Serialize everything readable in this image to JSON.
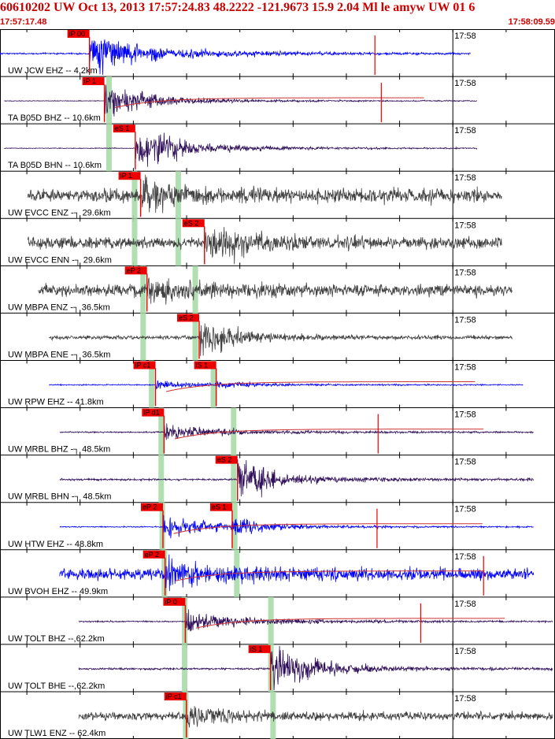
{
  "header": {
    "title": "60610202 UW Oct 13, 2013 17:57:24.83   48.2222 -121.9673 15.9 2.04 Ml le amyw UW 01   6",
    "start_time": "17:57:17.48",
    "end_time": "17:58:09.59"
  },
  "colors": {
    "header_text": "#cc0000",
    "trace_blue": "#0000ff",
    "trace_gray": "#404040",
    "trace_purple": "#30105a",
    "pick_box": "#ee0000",
    "pick_line": "#ee0000",
    "theory_band": "#a8dca8",
    "coda_line": "#cc3333"
  },
  "chart_data": {
    "type": "line",
    "title": "60610202 UW Oct 13, 2013 17:57:24.83   48.2222 -121.9673 15.9 2.04 Ml le amyw UW 01   6",
    "time_range": [
      "17:57:17.48",
      "17:58:09.59"
    ],
    "minute_tick_label": "17:58",
    "traces": [
      {
        "station": "UW JCW EHZ -- 4.2km",
        "color": "blue",
        "p_pick": "iP 00",
        "p_t": 8.4,
        "s_pick": "",
        "s_t": 0,
        "amp": 1.0,
        "onset_amp": 1.0,
        "noise": 0.04,
        "trace_start": 0,
        "trace_end": 44.2,
        "end_spike_t": 35.2,
        "coda": false,
        "band1_t": 0,
        "band2_t": 0
      },
      {
        "station": "TA B05D BHZ -- 10.6km",
        "color": "purple",
        "p_pick": "iP 1",
        "p_t": 9.8,
        "s_pick": "",
        "s_t": 0,
        "amp": 0.45,
        "onset_amp": 0.9,
        "noise": 0.02,
        "trace_start": 0.4,
        "trace_end": 44.8,
        "end_spike_t": 35.8,
        "coda": true,
        "band1_t": 10.2,
        "band2_t": 0
      },
      {
        "station": "TA B05D BHN -- 10.6km",
        "color": "purple",
        "p_pick": "",
        "p_t": 0,
        "s_pick": "eS 1",
        "s_t": 12.7,
        "amp": 0.55,
        "onset_amp": 1.0,
        "noise": 0.02,
        "trace_start": 0.4,
        "trace_end": 44.8,
        "end_spike_t": 0,
        "coda": false,
        "band1_t": 10.2,
        "band2_t": 0
      },
      {
        "station": "UW EVCC ENZ -┐ 29.6km",
        "color": "gray",
        "p_pick": "iP 1",
        "p_t": 13.2,
        "s_pick": "",
        "s_t": 0,
        "amp": 0.3,
        "onset_amp": 0.6,
        "noise": 0.35,
        "trace_start": 2.6,
        "trace_end": 47.1,
        "end_spike_t": 0,
        "coda": false,
        "band1_t": 12.6,
        "band2_t": 16.7
      },
      {
        "station": "UW EVCC ENN -┐ 29.6km",
        "color": "gray",
        "p_pick": "",
        "p_t": 0,
        "s_pick": "eS 2",
        "s_t": 19.2,
        "amp": 0.3,
        "onset_amp": 0.6,
        "noise": 0.3,
        "trace_start": 2.6,
        "trace_end": 47.1,
        "end_spike_t": 0,
        "coda": false,
        "band1_t": 12.6,
        "band2_t": 16.7
      },
      {
        "station": "UW MBPA ENZ -┐ 36.5km",
        "color": "gray",
        "p_pick": "eP 2",
        "p_t": 13.8,
        "s_pick": "",
        "s_t": 0,
        "amp": 0.3,
        "onset_amp": 0.5,
        "noise": 0.3,
        "trace_start": 3.6,
        "trace_end": 48.1,
        "end_spike_t": 0,
        "coda": false,
        "band1_t": 13.4,
        "band2_t": 18.3
      },
      {
        "station": "UW MBPA ENE -┐ 36.5km",
        "color": "gray",
        "p_pick": "",
        "p_t": 0,
        "s_pick": "eS 2",
        "s_t": 18.7,
        "amp": 0.25,
        "onset_amp": 0.6,
        "noise": 0.1,
        "trace_start": 4.6,
        "trace_end": 48.1,
        "end_spike_t": 0,
        "coda": false,
        "band1_t": 13.4,
        "band2_t": 18.3
      },
      {
        "station": "UW RPW EHZ -- 41.8km",
        "color": "blue",
        "p_pick": "iP c1",
        "p_t": 14.6,
        "s_pick": "iS 1",
        "s_t": 20.3,
        "amp": 0.18,
        "onset_amp": 0.2,
        "noise": 0.03,
        "trace_start": 4.6,
        "trace_end": 49.1,
        "end_spike_t": 0,
        "coda": true,
        "band1_t": 14.2,
        "band2_t": 20.0
      },
      {
        "station": "UW MRBL BHZ -┐ 48.5km",
        "color": "purple",
        "p_pick": "iP d1",
        "p_t": 15.4,
        "s_pick": "",
        "s_t": 0,
        "amp": 0.35,
        "onset_amp": 0.4,
        "noise": 0.04,
        "trace_start": 5.6,
        "trace_end": 50.1,
        "end_spike_t": 35.5,
        "coda": true,
        "band1_t": 15.1,
        "band2_t": 21.9
      },
      {
        "station": "UW MRBL BHN -┐ 48.5km",
        "color": "purple",
        "p_pick": "",
        "p_t": 0,
        "s_pick": "eS 2",
        "s_t": 22.3,
        "amp": 0.45,
        "onset_amp": 0.7,
        "noise": 0.05,
        "trace_start": 5.6,
        "trace_end": 50.1,
        "end_spike_t": 0,
        "coda": false,
        "band1_t": 15.1,
        "band2_t": 21.9
      },
      {
        "station": "UW HTW EHZ -- 48.8km",
        "color": "blue",
        "p_pick": "eP 2",
        "p_t": 15.3,
        "s_pick": "eS 1",
        "s_t": 21.8,
        "amp": 0.45,
        "onset_amp": 0.5,
        "noise": 0.03,
        "trace_start": 5.6,
        "trace_end": 50.1,
        "end_spike_t": 35.4,
        "coda": true,
        "band1_t": 15.2,
        "band2_t": 22.0
      },
      {
        "station": "UW BVOH EHZ -- 49.9km",
        "color": "blue",
        "p_pick": "eP 2",
        "p_t": 15.5,
        "s_pick": "",
        "s_t": 0,
        "amp": 0.45,
        "onset_amp": 0.6,
        "noise": 0.3,
        "trace_start": 5.6,
        "trace_end": 50.1,
        "end_spike_t": 45.4,
        "coda": true,
        "band1_t": 15.4,
        "band2_t": 22.2
      },
      {
        "station": "UW TOLT BHZ --,62.2km",
        "color": "purple",
        "p_pick": "iP 0",
        "p_t": 17.4,
        "s_pick": "",
        "s_t": 0,
        "amp": 0.45,
        "onset_amp": 0.5,
        "noise": 0.04,
        "trace_start": 7.4,
        "trace_end": 51.9,
        "end_spike_t": 39.5,
        "coda": true,
        "band1_t": 17.3,
        "band2_t": 25.4
      },
      {
        "station": "UW TOLT BHE --,62.2km",
        "color": "purple",
        "p_pick": "",
        "p_t": 0,
        "s_pick": "iS 1",
        "s_t": 25.4,
        "amp": 0.5,
        "onset_amp": 0.8,
        "noise": 0.05,
        "trace_start": 7.4,
        "trace_end": 51.9,
        "end_spike_t": 0,
        "coda": false,
        "band1_t": 17.3,
        "band2_t": 25.4
      },
      {
        "station": "UW TLW1 ENZ -- 62.4km",
        "color": "gray",
        "p_pick": "iP c1",
        "p_t": 17.5,
        "s_pick": "",
        "s_t": 0,
        "amp": 0.35,
        "onset_amp": 0.4,
        "noise": 0.2,
        "trace_start": 7.4,
        "trace_end": 51.9,
        "end_spike_t": 0,
        "coda": false,
        "band1_t": 17.4,
        "band2_t": 25.6
      }
    ]
  }
}
